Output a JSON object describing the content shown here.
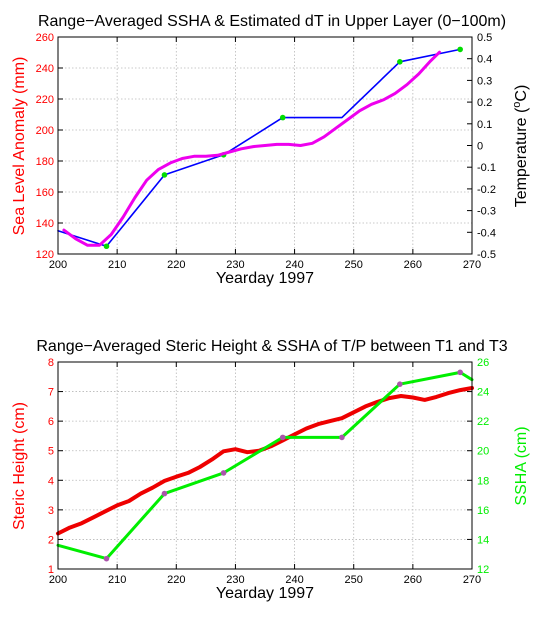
{
  "chart_data": [
    {
      "type": "line",
      "title": "Range−Averaged SSHA & Estimated dT in Upper Layer (0−100m)",
      "xlabel": "Yearday 1997",
      "ylabel": "Sea Level Anomaly (mm)",
      "ylabel_right": "Temperature (",
      "ylabel_right_sup": "o",
      "ylabel_right_unit": "C)",
      "xlim": [
        200,
        270
      ],
      "ylim": [
        120,
        260
      ],
      "ylim_right": [
        -0.5,
        0.5
      ],
      "grid": true,
      "colors": {
        "left_axis": "#ff0000",
        "right_axis": "#000000"
      },
      "x_ticks": [
        200,
        210,
        220,
        230,
        240,
        250,
        260,
        270
      ],
      "y_ticks": [
        120,
        140,
        160,
        180,
        200,
        220,
        240,
        260
      ],
      "y_ticks_right": [
        -0.5,
        -0.4,
        -0.3,
        -0.2,
        -0.1,
        0,
        0.1,
        0.2,
        0.3,
        0.4,
        0.5
      ],
      "series": [
        {
          "axis": "left",
          "color": "#0000ff",
          "width": 1.6,
          "x": [
            200,
            208.2,
            218,
            228,
            238,
            248,
            257.8,
            268
          ],
          "y": [
            135,
            125,
            171,
            184,
            208,
            208,
            244,
            252
          ],
          "marker_x": [
            208.2,
            218,
            228,
            238,
            257.8,
            268
          ],
          "marker_y": [
            125,
            171,
            184,
            208,
            244,
            252
          ],
          "marker_color": "#00dd00"
        },
        {
          "axis": "right",
          "color": "#ee00ee",
          "width": 3,
          "x": [
            201,
            203,
            205,
            207,
            209,
            211,
            213,
            215,
            217,
            219,
            221,
            223,
            225,
            227,
            229,
            231,
            233,
            235,
            237,
            239,
            241,
            243,
            245,
            247,
            249,
            251,
            253,
            255,
            257,
            259,
            261,
            263,
            264.5
          ],
          "y": [
            -0.39,
            -0.43,
            -0.46,
            -0.46,
            -0.41,
            -0.33,
            -0.24,
            -0.16,
            -0.11,
            -0.08,
            -0.06,
            -0.05,
            -0.05,
            -0.045,
            -0.03,
            -0.015,
            -0.005,
            0,
            0.005,
            0.005,
            0,
            0.01,
            0.04,
            0.08,
            0.12,
            0.16,
            0.19,
            0.21,
            0.24,
            0.28,
            0.33,
            0.39,
            0.43
          ]
        }
      ]
    },
    {
      "type": "line",
      "title": "Range−Averaged Steric Height & SSHA of T/P between T1 and T3",
      "xlabel": "Yearday 1997",
      "ylabel": "Steric Height (cm)",
      "ylabel_right": "SSHA (cm)",
      "xlim": [
        200,
        270
      ],
      "ylim": [
        1,
        8
      ],
      "ylim_right": [
        12,
        26
      ],
      "grid": true,
      "colors": {
        "left_axis": "#ff0000",
        "right_axis": "#00ee00"
      },
      "x_ticks": [
        200,
        210,
        220,
        230,
        240,
        250,
        260,
        270
      ],
      "y_ticks": [
        1,
        2,
        3,
        4,
        5,
        6,
        7,
        8
      ],
      "y_ticks_right": [
        12,
        14,
        16,
        18,
        20,
        22,
        24,
        26
      ],
      "series": [
        {
          "axis": "left",
          "color": "#ee0000",
          "width": 4,
          "x": [
            200,
            202,
            204,
            206,
            208,
            210,
            212,
            214,
            216,
            218,
            220,
            222,
            224,
            226,
            228,
            230,
            232,
            234,
            236,
            238,
            240,
            242,
            244,
            246,
            248,
            250,
            252,
            254,
            256,
            258,
            260,
            262,
            264,
            266,
            268,
            270
          ],
          "y": [
            2.2,
            2.4,
            2.55,
            2.75,
            2.95,
            3.15,
            3.3,
            3.55,
            3.75,
            3.98,
            4.12,
            4.25,
            4.45,
            4.7,
            4.98,
            5.05,
            4.95,
            5.0,
            5.15,
            5.35,
            5.55,
            5.75,
            5.9,
            6.0,
            6.1,
            6.3,
            6.5,
            6.65,
            6.78,
            6.85,
            6.8,
            6.72,
            6.82,
            6.95,
            7.05,
            7.12
          ]
        },
        {
          "axis": "right",
          "color": "#00ee00",
          "width": 3,
          "x": [
            200,
            208.2,
            218,
            228,
            238,
            248,
            257.8,
            268,
            270
          ],
          "y": [
            13.6,
            12.7,
            17.1,
            18.5,
            20.9,
            20.9,
            24.5,
            25.3,
            24.8
          ],
          "marker_x": [
            208.2,
            218,
            228,
            238,
            248,
            257.8,
            268
          ],
          "marker_y": [
            12.7,
            17.1,
            18.5,
            20.9,
            20.9,
            24.5,
            25.3
          ],
          "marker_color": "#aa55aa"
        }
      ]
    }
  ]
}
